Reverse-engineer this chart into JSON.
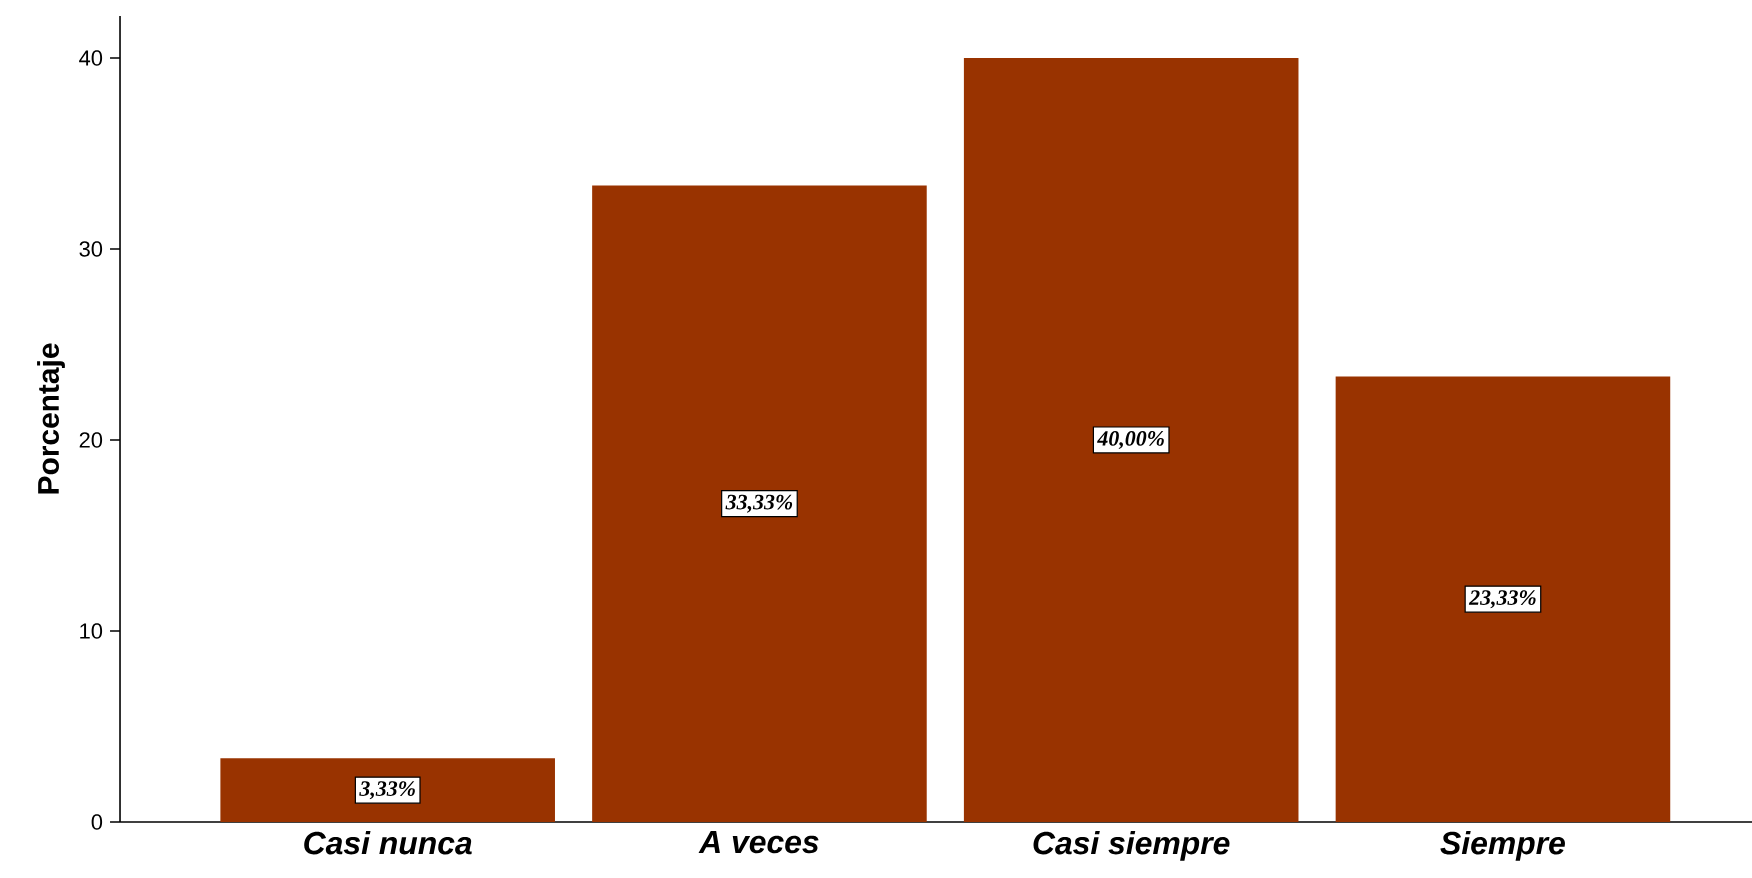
{
  "chart_data": {
    "type": "bar",
    "ylabel": "Porcentaje",
    "categories": [
      "Casi nunca",
      "A veces",
      "Casi siempre",
      "Siempre"
    ],
    "values": [
      3.33,
      33.33,
      40.0,
      23.33
    ],
    "value_labels": [
      "3,33%",
      "33,33%",
      "40,00%",
      "23,33%"
    ],
    "color": "#993300",
    "ylim": [
      0,
      42.2
    ],
    "yticks": [
      0,
      10,
      20,
      30,
      40
    ]
  }
}
